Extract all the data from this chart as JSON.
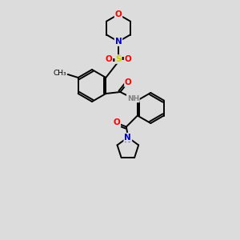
{
  "background_color": "#dcdcdc",
  "bond_color": "#000000",
  "atom_colors": {
    "O": "#ff0000",
    "N": "#0000cd",
    "S": "#cccc00",
    "C": "#000000",
    "H": "#7f7f7f"
  },
  "figsize": [
    3.0,
    3.0
  ],
  "dpi": 100
}
